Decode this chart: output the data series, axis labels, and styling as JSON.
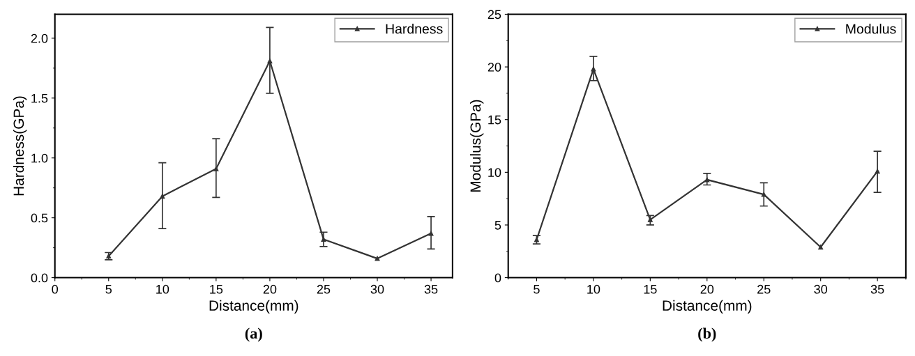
{
  "chart_data": [
    {
      "type": "line",
      "xlabel": "Distance(mm)",
      "ylabel": "Hardness(GPa)",
      "annotations": [
        "(a)"
      ],
      "x": [
        5,
        10,
        15,
        20,
        25,
        30,
        35
      ],
      "xlim": [
        0,
        37
      ],
      "xticks": [
        0,
        5,
        10,
        15,
        20,
        25,
        30,
        35
      ],
      "ylim": [
        0,
        2.2
      ],
      "yticks": [
        {
          "value": 0,
          "label": "0.0"
        },
        0.5,
        {
          "value": 1,
          "label": "1.0"
        },
        1.5,
        {
          "value": 2,
          "label": "2.0"
        }
      ],
      "legend": "top right",
      "marker": "triangle",
      "line_style": "solid",
      "grid": false,
      "series": [
        {
          "name": "Hardness",
          "color": "#333333",
          "values": [
            0.18,
            0.68,
            0.91,
            1.81,
            0.32,
            0.16,
            0.37
          ],
          "errors": [
            [
              0.15,
              0.21
            ],
            [
              0.41,
              0.96
            ],
            [
              0.67,
              1.16
            ],
            [
              1.54,
              2.09
            ],
            [
              0.26,
              0.38
            ],
            null,
            [
              0.24,
              0.51
            ]
          ]
        }
      ]
    },
    {
      "type": "line",
      "xlabel": "Distance(mm)",
      "ylabel": "Modulus(GPa)",
      "annotations": [
        "(b)"
      ],
      "x": [
        5,
        10,
        15,
        20,
        25,
        30,
        35
      ],
      "xlim": [
        2.5,
        37.5
      ],
      "xticks": [
        5,
        10,
        15,
        20,
        25,
        30,
        35
      ],
      "ylim": [
        0,
        25
      ],
      "yticks": [
        0,
        5,
        10,
        15,
        20,
        25
      ],
      "legend": "top right",
      "marker": "triangle",
      "line_style": "solid",
      "grid": false,
      "series": [
        {
          "name": "Modulus",
          "color": "#333333",
          "values": [
            3.6,
            19.8,
            5.5,
            9.3,
            7.9,
            2.9,
            10.1
          ],
          "errors": [
            [
              3.2,
              4.0
            ],
            [
              18.7,
              21.0
            ],
            [
              5.0,
              5.9
            ],
            [
              8.8,
              9.9
            ],
            [
              6.8,
              9.0
            ],
            null,
            [
              8.1,
              12.0
            ]
          ]
        }
      ]
    }
  ]
}
